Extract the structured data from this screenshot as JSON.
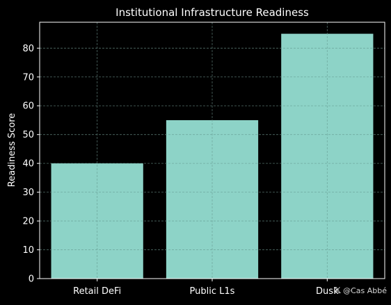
{
  "chart_data": {
    "type": "bar",
    "title": "Institutional Infrastructure Readiness",
    "xlabel": "",
    "ylabel": "Readiness Score",
    "categories": [
      "Retail DeFi",
      "Public L1s",
      "Dusk"
    ],
    "values": [
      40,
      55,
      85
    ],
    "ylim": [
      0,
      89
    ],
    "yticks": [
      0,
      10,
      20,
      30,
      40,
      50,
      60,
      70,
      80
    ],
    "grid": true,
    "bar_color": "#8dd3c7",
    "background": "#000000",
    "axis_color": "#ffffff"
  },
  "watermark": {
    "icon": "x-logo-icon",
    "handle": "@Cas Abbé"
  }
}
